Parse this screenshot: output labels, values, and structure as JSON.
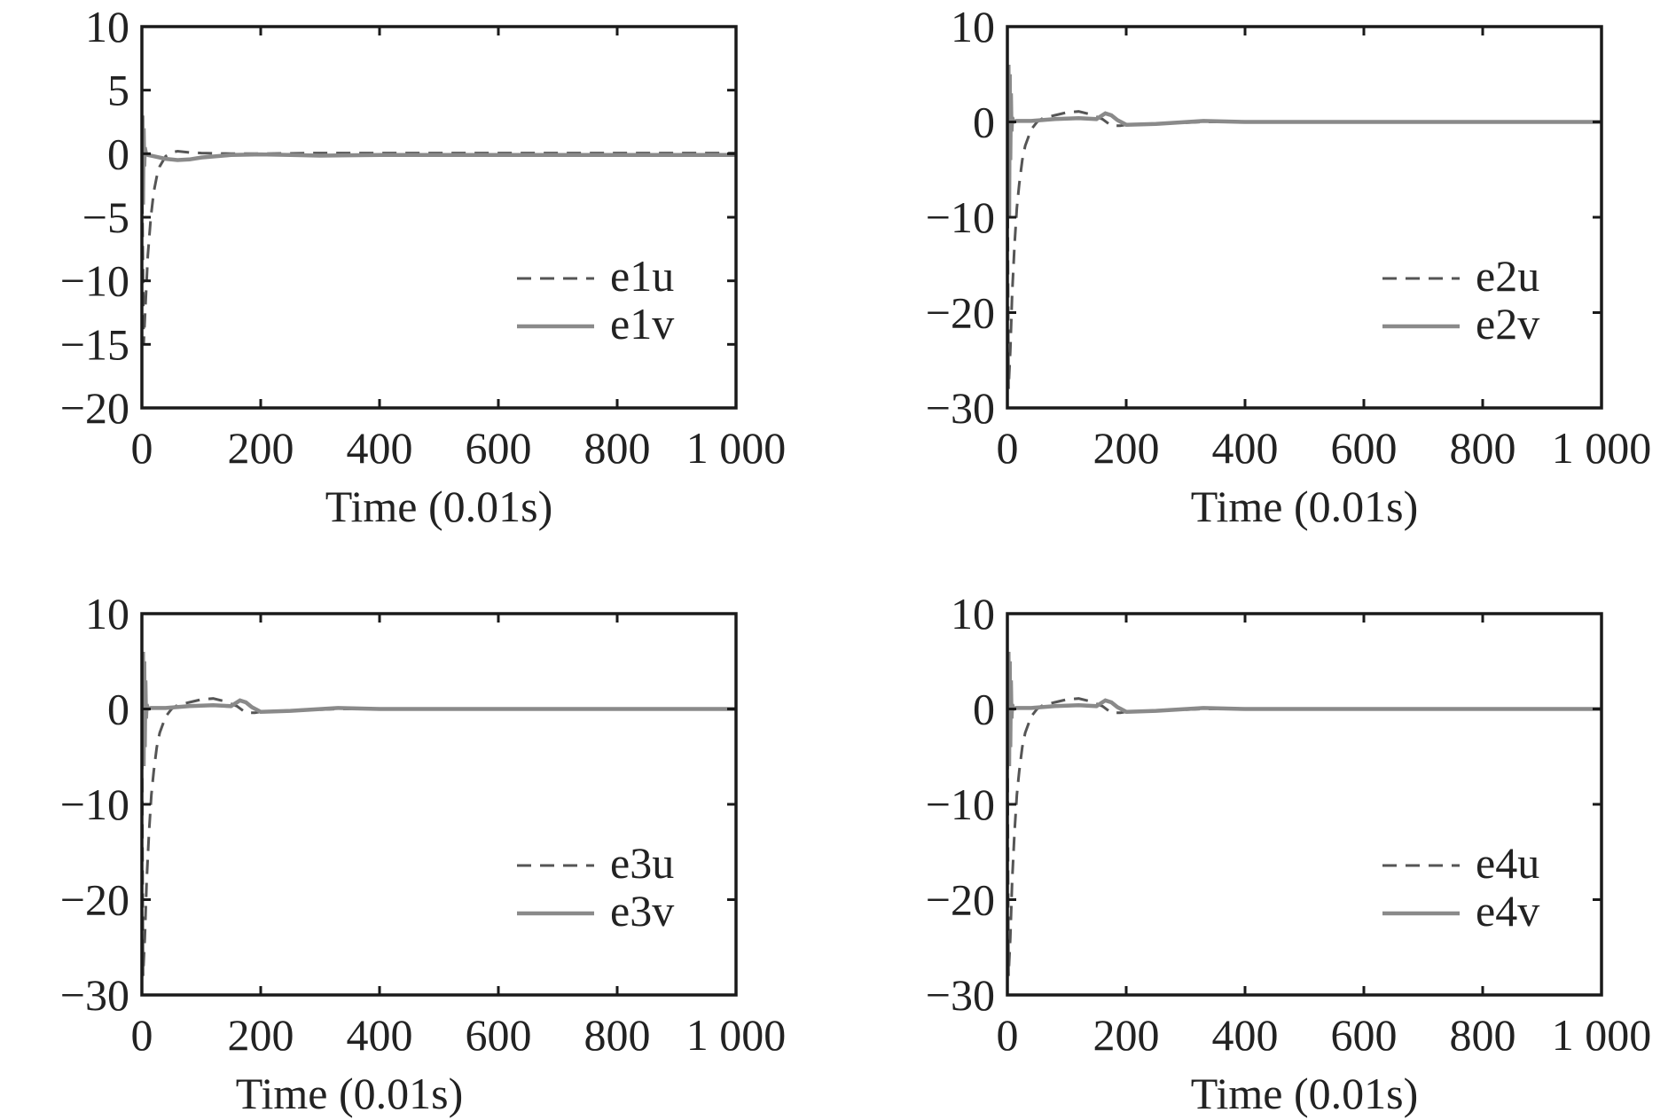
{
  "chart_data": [
    {
      "type": "line",
      "xlabel": "Time (0.01s)",
      "ylabel": "",
      "xlim": [
        0,
        1000
      ],
      "ylim": [
        -20,
        10
      ],
      "xticks": [
        0,
        200,
        400,
        600,
        800,
        1000
      ],
      "xtick_labels": [
        "0",
        "200",
        "400",
        "600",
        "800",
        "1 000"
      ],
      "yticks": [
        10,
        5,
        0,
        -5,
        -10,
        -15,
        -20
      ],
      "ytick_labels": [
        "10",
        "5",
        "0",
        "−5",
        "−10",
        "−15",
        "−20"
      ],
      "legend": "lower-right",
      "grid": false,
      "series": [
        {
          "name": "e1u",
          "style": "dashed",
          "color": "#555555",
          "x": [
            0,
            3,
            6,
            10,
            15,
            20,
            25,
            30,
            40,
            50,
            60,
            80,
            100,
            150,
            200,
            300,
            400,
            600,
            800,
            1000
          ],
          "y": [
            0,
            -15,
            -12,
            -8,
            -5,
            -3,
            -1.8,
            -1,
            -0.2,
            0.1,
            0.2,
            0.1,
            0.05,
            0,
            0,
            0.05,
            0.05,
            0.05,
            0.05,
            0.05
          ]
        },
        {
          "name": "e1v",
          "style": "solid",
          "color": "#8a8a8a",
          "x": [
            0,
            1,
            2,
            3,
            4,
            5,
            7,
            10,
            20,
            40,
            60,
            80,
            100,
            150,
            200,
            250,
            300,
            400,
            600,
            800,
            1000
          ],
          "y": [
            0,
            3,
            -4,
            2,
            -1,
            0.5,
            0,
            -0.1,
            -0.2,
            -0.4,
            -0.5,
            -0.45,
            -0.3,
            -0.1,
            -0.05,
            -0.1,
            -0.15,
            -0.1,
            -0.1,
            -0.1,
            -0.1
          ]
        }
      ]
    },
    {
      "type": "line",
      "xlabel": "Time (0.01s)",
      "ylabel": "",
      "xlim": [
        0,
        1000
      ],
      "ylim": [
        -30,
        10
      ],
      "xticks": [
        0,
        200,
        400,
        600,
        800,
        1000
      ],
      "xtick_labels": [
        "0",
        "200",
        "400",
        "600",
        "800",
        "1 000"
      ],
      "yticks": [
        10,
        0,
        -10,
        -20,
        -30
      ],
      "ytick_labels": [
        "10",
        "0",
        "−10",
        "−20",
        "−30"
      ],
      "legend": "lower-right",
      "grid": false,
      "series": [
        {
          "name": "e2u",
          "style": "dashed",
          "color": "#555555",
          "x": [
            0,
            2,
            5,
            8,
            12,
            16,
            20,
            25,
            30,
            40,
            50,
            60,
            80,
            100,
            120,
            140,
            160,
            175,
            190,
            200,
            250,
            330,
            400,
            600,
            800,
            1000
          ],
          "y": [
            0,
            -28,
            -24,
            -18,
            -13,
            -9,
            -6.5,
            -4,
            -2.5,
            -0.8,
            0,
            0.4,
            0.7,
            1,
            1.1,
            0.8,
            0.3,
            -0.4,
            -0.4,
            -0.3,
            -0.2,
            0,
            0,
            0,
            0,
            0
          ]
        },
        {
          "name": "e2v",
          "style": "solid",
          "color": "#8a8a8a",
          "x": [
            0,
            2,
            3,
            4,
            5,
            6,
            7,
            8,
            10,
            15,
            40,
            80,
            120,
            150,
            165,
            175,
            185,
            200,
            250,
            330,
            400,
            600,
            800,
            1000
          ],
          "y": [
            0,
            6,
            -10,
            5,
            -4,
            3,
            -1,
            0.5,
            0,
            0.1,
            0.1,
            0.3,
            0.4,
            0.3,
            0.9,
            0.7,
            0.2,
            -0.3,
            -0.2,
            0.1,
            0,
            0,
            0,
            0
          ]
        }
      ]
    },
    {
      "type": "line",
      "xlabel": "Time (0.01s)",
      "ylabel": "",
      "xlim": [
        0,
        1000
      ],
      "ylim": [
        -30,
        10
      ],
      "xticks": [
        0,
        200,
        400,
        600,
        800,
        1000
      ],
      "xtick_labels": [
        "0",
        "200",
        "400",
        "600",
        "800",
        "1 000"
      ],
      "yticks": [
        10,
        0,
        -10,
        -20,
        -30
      ],
      "ytick_labels": [
        "10",
        "0",
        "−10",
        "−20",
        "−30"
      ],
      "legend": "lower-right",
      "grid": false,
      "series": [
        {
          "name": "e3u",
          "style": "dashed",
          "color": "#555555",
          "x": [
            0,
            2,
            5,
            8,
            12,
            16,
            20,
            25,
            30,
            40,
            50,
            60,
            80,
            100,
            120,
            140,
            160,
            175,
            190,
            200,
            250,
            330,
            400,
            600,
            800,
            1000
          ],
          "y": [
            0,
            -28,
            -24,
            -18,
            -13,
            -9,
            -6.5,
            -4,
            -2.5,
            -0.8,
            0,
            0.4,
            0.7,
            1,
            1.1,
            0.8,
            0.3,
            -0.4,
            -0.4,
            -0.3,
            -0.2,
            0,
            0,
            0,
            0,
            0
          ]
        },
        {
          "name": "e3v",
          "style": "solid",
          "color": "#8a8a8a",
          "x": [
            0,
            2,
            3,
            4,
            5,
            6,
            7,
            8,
            10,
            15,
            40,
            80,
            120,
            150,
            165,
            175,
            185,
            200,
            250,
            330,
            400,
            600,
            800,
            1000
          ],
          "y": [
            0,
            6,
            -6,
            5,
            -4,
            3,
            -1,
            0.5,
            0,
            0.1,
            0.1,
            0.3,
            0.4,
            0.3,
            0.9,
            0.7,
            0.2,
            -0.3,
            -0.2,
            0.1,
            0,
            0,
            0,
            0
          ]
        }
      ]
    },
    {
      "type": "line",
      "xlabel": "Time (0.01s)",
      "ylabel": "",
      "xlim": [
        0,
        1000
      ],
      "ylim": [
        -30,
        10
      ],
      "xticks": [
        0,
        200,
        400,
        600,
        800,
        1000
      ],
      "xtick_labels": [
        "0",
        "200",
        "400",
        "600",
        "800",
        "1 000"
      ],
      "yticks": [
        10,
        0,
        -10,
        -20,
        -30
      ],
      "ytick_labels": [
        "10",
        "0",
        "−10",
        "−20",
        "−30"
      ],
      "legend": "lower-right",
      "grid": false,
      "series": [
        {
          "name": "e4u",
          "style": "dashed",
          "color": "#555555",
          "x": [
            0,
            2,
            5,
            8,
            12,
            16,
            20,
            25,
            30,
            40,
            50,
            60,
            80,
            100,
            120,
            140,
            160,
            175,
            190,
            200,
            250,
            330,
            400,
            600,
            800,
            1000
          ],
          "y": [
            0,
            -28,
            -24,
            -18,
            -13,
            -9,
            -6.5,
            -4,
            -2.5,
            -0.8,
            0,
            0.4,
            0.7,
            1,
            1.1,
            0.8,
            0.3,
            -0.4,
            -0.4,
            -0.3,
            -0.2,
            0,
            0,
            0,
            0,
            0
          ]
        },
        {
          "name": "e4v",
          "style": "solid",
          "color": "#8a8a8a",
          "x": [
            0,
            2,
            3,
            4,
            5,
            6,
            7,
            8,
            10,
            15,
            40,
            80,
            120,
            150,
            165,
            175,
            185,
            200,
            250,
            330,
            400,
            600,
            800,
            1000
          ],
          "y": [
            0,
            6,
            -6,
            5,
            -4,
            3,
            -1,
            0.5,
            0,
            0.1,
            0.1,
            0.3,
            0.4,
            0.3,
            0.9,
            0.7,
            0.2,
            -0.3,
            -0.2,
            0.1,
            0,
            0,
            0,
            0
          ]
        }
      ]
    }
  ]
}
